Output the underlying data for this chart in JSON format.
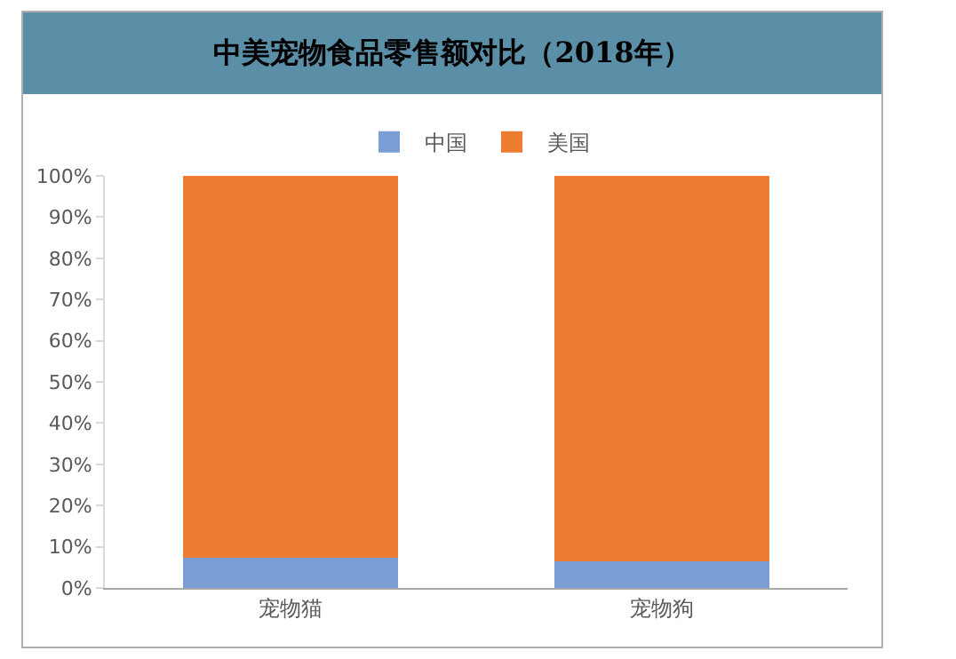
{
  "chart_data": {
    "type": "bar",
    "title": "中美宠物食品零售额对比（2018年）",
    "categories": [
      "宠物猫",
      "宠物狗"
    ],
    "series": [
      {
        "name": "中国",
        "color": "#7b9ed6",
        "values": [
          7.3,
          6.5
        ]
      },
      {
        "name": "美国",
        "color": "#ed7d31",
        "values": [
          92.7,
          93.5
        ]
      }
    ],
    "stacked": true,
    "ylim": [
      0,
      100
    ],
    "yticks": [
      {
        "value": 0,
        "label": "0%"
      },
      {
        "value": 10,
        "label": "10%"
      },
      {
        "value": 20,
        "label": "20%"
      },
      {
        "value": 30,
        "label": "30%"
      },
      {
        "value": 40,
        "label": "40%"
      },
      {
        "value": 50,
        "label": "50%"
      },
      {
        "value": 60,
        "label": "60%"
      },
      {
        "value": 70,
        "label": "70%"
      },
      {
        "value": 80,
        "label": "80%"
      },
      {
        "value": 90,
        "label": "90%"
      },
      {
        "value": 100,
        "label": "100%"
      }
    ],
    "grid": false,
    "legend": "top"
  }
}
